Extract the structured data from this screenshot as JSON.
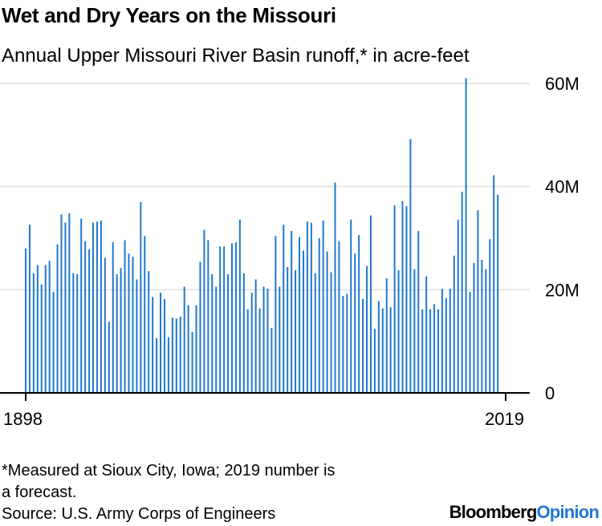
{
  "header": {
    "title": "Wet and Dry Years on the Missouri",
    "subtitle": "Annual Upper Missouri River Basin runoff,* in acre-feet"
  },
  "footer": {
    "note_line1": "*Measured at Sioux City, Iowa; 2019 number is",
    "note_line2": "a forecast.",
    "source": "Source: U.S. Army Corps of Engineers",
    "logo_bloomberg": "Bloomberg",
    "logo_opinion": "Opinion"
  },
  "colors": {
    "bar": "#1f78d1",
    "grid": "#e6e6e6",
    "axis": "#000000"
  },
  "chart_data": {
    "type": "bar",
    "title": "Wet and Dry Years on the Missouri",
    "subtitle": "Annual Upper Missouri River Basin runoff,* in acre-feet",
    "x_start": 1898,
    "x_end": 2019,
    "x_tick_labels": [
      "1898",
      "2019"
    ],
    "y_ticks": [
      0,
      20,
      40,
      60
    ],
    "y_tick_labels": [
      "0",
      "20M",
      "40M",
      "60M"
    ],
    "ylim": [
      0,
      62
    ],
    "grid": true,
    "y_axis_position": "right",
    "unit": "million acre-feet",
    "values": [
      28,
      32.6,
      23.2,
      24.8,
      21,
      24.8,
      25.6,
      19.6,
      28.8,
      34.6,
      33,
      34.8,
      23.2,
      23,
      33.8,
      29.4,
      27.8,
      33,
      33.2,
      33.4,
      26.2,
      13.8,
      29.2,
      23,
      24.2,
      29.6,
      27,
      26.4,
      22,
      37,
      30.4,
      23.6,
      18.6,
      10.6,
      19.4,
      18.2,
      10.8,
      14.6,
      14.4,
      14.8,
      20.6,
      17,
      11.8,
      17,
      25.4,
      31.6,
      29.6,
      23,
      20.6,
      28.4,
      28.4,
      23,
      29,
      29.2,
      33.6,
      23.2,
      16.2,
      19.4,
      22,
      16.4,
      20.6,
      20.2,
      12.6,
      30.4,
      20.6,
      32.6,
      24.4,
      31.4,
      23.8,
      30.2,
      27.6,
      33.2,
      33,
      23.2,
      30,
      33.4,
      27.4,
      23.4,
      40.8,
      29.4,
      18.8,
      19.2,
      33.6,
      27,
      30.6,
      18.2,
      24.6,
      34.4,
      12.4,
      17.8,
      16.4,
      22.2,
      16.6,
      36.4,
      23.8,
      37.2,
      36.2,
      49.2,
      24,
      31.4,
      16.2,
      22.6,
      16.2,
      17.2,
      16.2,
      20.2,
      18.4,
      20.2,
      26.6,
      33.6,
      39,
      61,
      19.6,
      25.2,
      35.4,
      25.8,
      24,
      29.8,
      42.2,
      38.4
    ]
  }
}
